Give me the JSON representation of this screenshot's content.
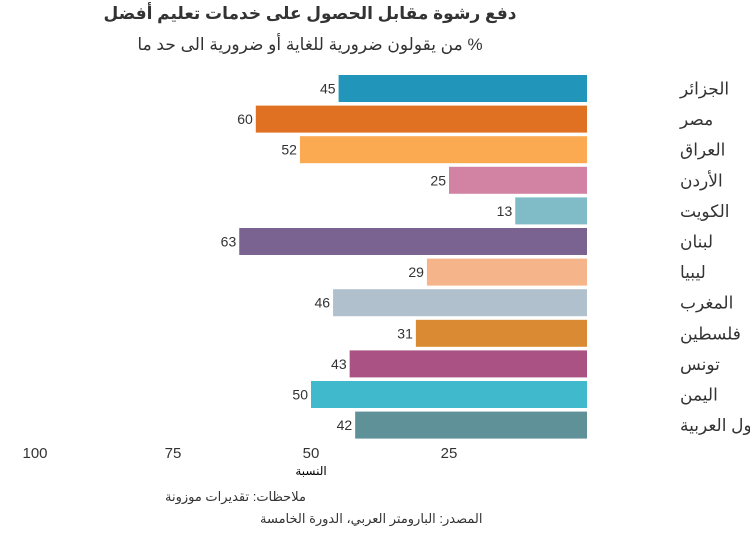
{
  "chart_data": {
    "type": "bar",
    "orientation": "horizontal",
    "direction": "right-to-left",
    "title": "دفع رشوة مقابل الحصول على خدمات تعليم أفضل",
    "subtitle": "% من يقولون ضرورية للغاية أو ضرورية الى حد ما",
    "categories": [
      "الجزائر",
      "مصر",
      "العراق",
      "الأردن",
      "الكويت",
      "لبنان",
      "ليبيا",
      "المغرب",
      "فلسطين",
      "تونس",
      "اليمن",
      "الدول العربية"
    ],
    "values": [
      45,
      60,
      52,
      25,
      13,
      63,
      29,
      46,
      31,
      43,
      50,
      42
    ],
    "colors": [
      "#2196ba",
      "#e07022",
      "#fcaa52",
      "#d283a3",
      "#7fbcc8",
      "#7a6391",
      "#f6b48b",
      "#b0c0cd",
      "#da8a33",
      "#aa5283",
      "#40b9cd",
      "#5f9199"
    ],
    "xlabel": "النسبة",
    "xticks": [
      100,
      75,
      50,
      25
    ],
    "xlim": [
      0,
      100
    ],
    "grid": false,
    "notes": "ملاحظات: تقديرات موزونة",
    "source": "المصدر: البارومتر العربي، الدورة الخامسة"
  }
}
